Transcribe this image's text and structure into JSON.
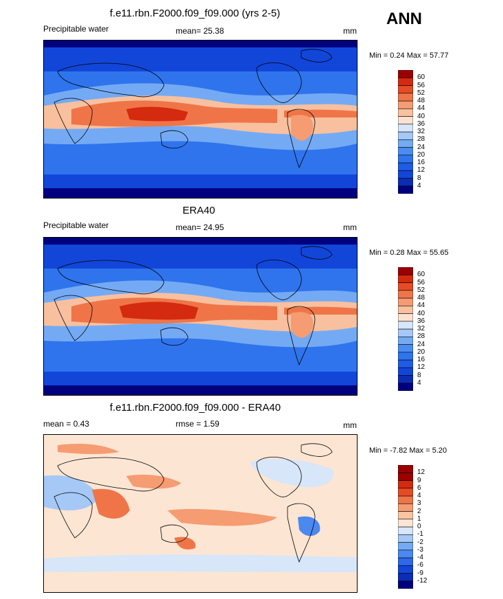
{
  "season": "ANN",
  "panels": [
    {
      "title": "f.e11.rbn.F2000.f09_f09.000 (yrs 2-5)",
      "left_label": "Precipitable water",
      "center_label": "mean=  25.38",
      "units": "mm",
      "minmax": "Min =   0.24 Max =  57.77",
      "levels": [
        "4",
        "8",
        "12",
        "16",
        "20",
        "24",
        "28",
        "32",
        "36",
        "40",
        "44",
        "48",
        "52",
        "56",
        "60"
      ]
    },
    {
      "title": "ERA40",
      "left_label": "Precipitable water",
      "center_label": "mean=  24.95",
      "units": "mm",
      "minmax": "Min =   0.28 Max =  55.65",
      "levels": [
        "4",
        "8",
        "12",
        "16",
        "20",
        "24",
        "28",
        "32",
        "36",
        "40",
        "44",
        "48",
        "52",
        "56",
        "60"
      ]
    },
    {
      "title": "f.e11.rbn.F2000.f09_f09.000 - ERA40",
      "left_label": "mean =   0.43",
      "center_label": "rmse =   1.59",
      "units": "mm",
      "minmax": "Min =  -7.82 Max =   5.20",
      "levels": [
        "-12",
        "-9",
        "-6",
        "-4",
        "-3",
        "-2",
        "-1",
        "0",
        "1",
        "2",
        "3",
        "4",
        "6",
        "9",
        "12"
      ]
    }
  ],
  "colors": {
    "abs_scale": [
      "#00007f",
      "#0b2cb4",
      "#1246d9",
      "#1e5ce6",
      "#2f74ed",
      "#4b8cf2",
      "#74aaf4",
      "#a6c8f6",
      "#d7e6f8",
      "#fbe2d0",
      "#f8c09e",
      "#f59c72",
      "#ef7548",
      "#e64b25",
      "#d42a0f",
      "#9b0000"
    ],
    "diff_scale": [
      "#00007f",
      "#0b2cb4",
      "#1246d9",
      "#2f68e8",
      "#4b88f0",
      "#74aaf4",
      "#a6c8f6",
      "#d7e6f8",
      "#fde5d3",
      "#f8c5a4",
      "#f59c72",
      "#ef7548",
      "#e64b25",
      "#d42a0f",
      "#9b0000"
    ]
  }
}
